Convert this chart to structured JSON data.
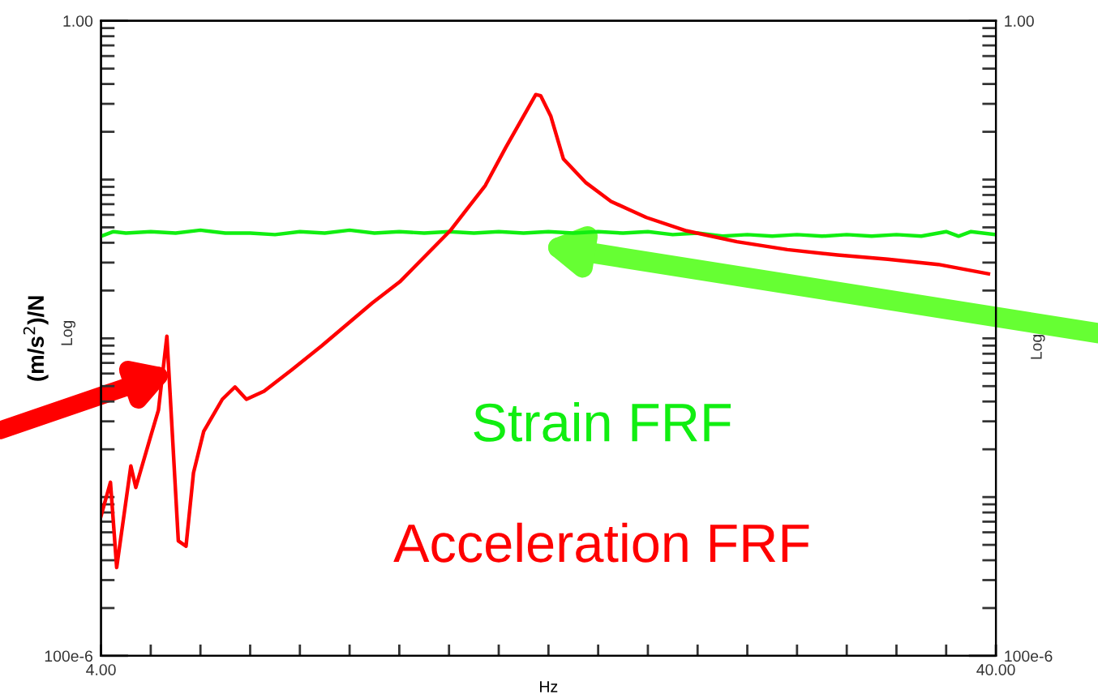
{
  "chart_data": {
    "type": "line",
    "xlabel": "Hz",
    "ylabel": "(m/s$^{2}$)/N",
    "annotations": [
      "Log",
      "Log"
    ],
    "log": true,
    "xlim": [
      4,
      40
    ],
    "xticks": [
      {
        "value": 4,
        "label": "4.00"
      },
      {
        "value": 6,
        "label": null
      },
      {
        "value": 8,
        "label": null
      },
      {
        "value": 10,
        "label": null
      },
      {
        "value": 12,
        "label": null
      },
      {
        "value": 14,
        "label": null
      },
      {
        "value": 16,
        "label": null
      },
      {
        "value": 18,
        "label": null
      },
      {
        "value": 20,
        "label": null
      },
      {
        "value": 22,
        "label": null
      },
      {
        "value": 24,
        "label": null
      },
      {
        "value": 26,
        "label": null
      },
      {
        "value": 28,
        "label": null
      },
      {
        "value": 30,
        "label": null
      },
      {
        "value": 32,
        "label": null
      },
      {
        "value": 34,
        "label": null
      },
      {
        "value": 36,
        "label": null
      },
      {
        "value": 38,
        "label": null
      },
      {
        "value": 40,
        "label": "40.00"
      }
    ],
    "ylim": [
      0.0001,
      1
    ],
    "yticks": [
      {
        "value": 0.0001,
        "label": "100e-6"
      },
      {
        "value": 1,
        "label": "1.00"
      }
    ],
    "y2lim": [
      0.0001,
      1
    ],
    "y2ticks": [
      {
        "value": 0.0001,
        "label": "100e-6"
      },
      {
        "value": 1,
        "label": "1.00"
      }
    ],
    "grid": false,
    "legend": false,
    "series": [
      {
        "name": "Strain FRF",
        "color": "#11ee11",
        "x": [
          4,
          4.5,
          5,
          6,
          7,
          8,
          9,
          10,
          11,
          12,
          13,
          14,
          15,
          16,
          17,
          18,
          19,
          20,
          21,
          22,
          23,
          24,
          25,
          26,
          27,
          28,
          29,
          30,
          31,
          32,
          33,
          34,
          35,
          36,
          37,
          38,
          38.5,
          39,
          40
        ],
        "values": [
          0.044,
          0.047,
          0.046,
          0.047,
          0.046,
          0.048,
          0.046,
          0.046,
          0.045,
          0.047,
          0.046,
          0.048,
          0.046,
          0.047,
          0.046,
          0.047,
          0.046,
          0.047,
          0.046,
          0.047,
          0.046,
          0.047,
          0.046,
          0.047,
          0.045,
          0.046,
          0.044,
          0.045,
          0.044,
          0.045,
          0.044,
          0.045,
          0.044,
          0.045,
          0.044,
          0.047,
          0.044,
          0.047,
          0.045
        ]
      },
      {
        "name": "Acceleration FRF",
        "color": "#ff0000",
        "x": [
          4.0,
          4.38,
          4.63,
          5.2,
          5.4,
          6.0,
          6.31,
          6.65,
          7.11,
          7.42,
          7.72,
          8.13,
          8.88,
          9.39,
          9.85,
          10.56,
          11.67,
          12.88,
          14.91,
          16.02,
          18.04,
          19.46,
          20.27,
          21.49,
          21.69,
          22.09,
          22.6,
          23.51,
          24.52,
          25.94,
          27.56,
          29.58,
          31.61,
          33.63,
          35.65,
          37.68,
          39.7
        ],
        "values": [
          0.00076,
          0.00124,
          0.00036,
          0.00157,
          0.00115,
          0.00242,
          0.00353,
          0.0103,
          0.00053,
          0.00049,
          0.00142,
          0.00259,
          0.00413,
          0.00494,
          0.00413,
          0.00464,
          0.00632,
          0.00897,
          0.0167,
          0.0227,
          0.0475,
          0.0918,
          0.158,
          0.343,
          0.337,
          0.252,
          0.135,
          0.0955,
          0.0728,
          0.0577,
          0.0475,
          0.0406,
          0.0362,
          0.0335,
          0.0315,
          0.0292,
          0.0255
        ]
      }
    ]
  }
}
